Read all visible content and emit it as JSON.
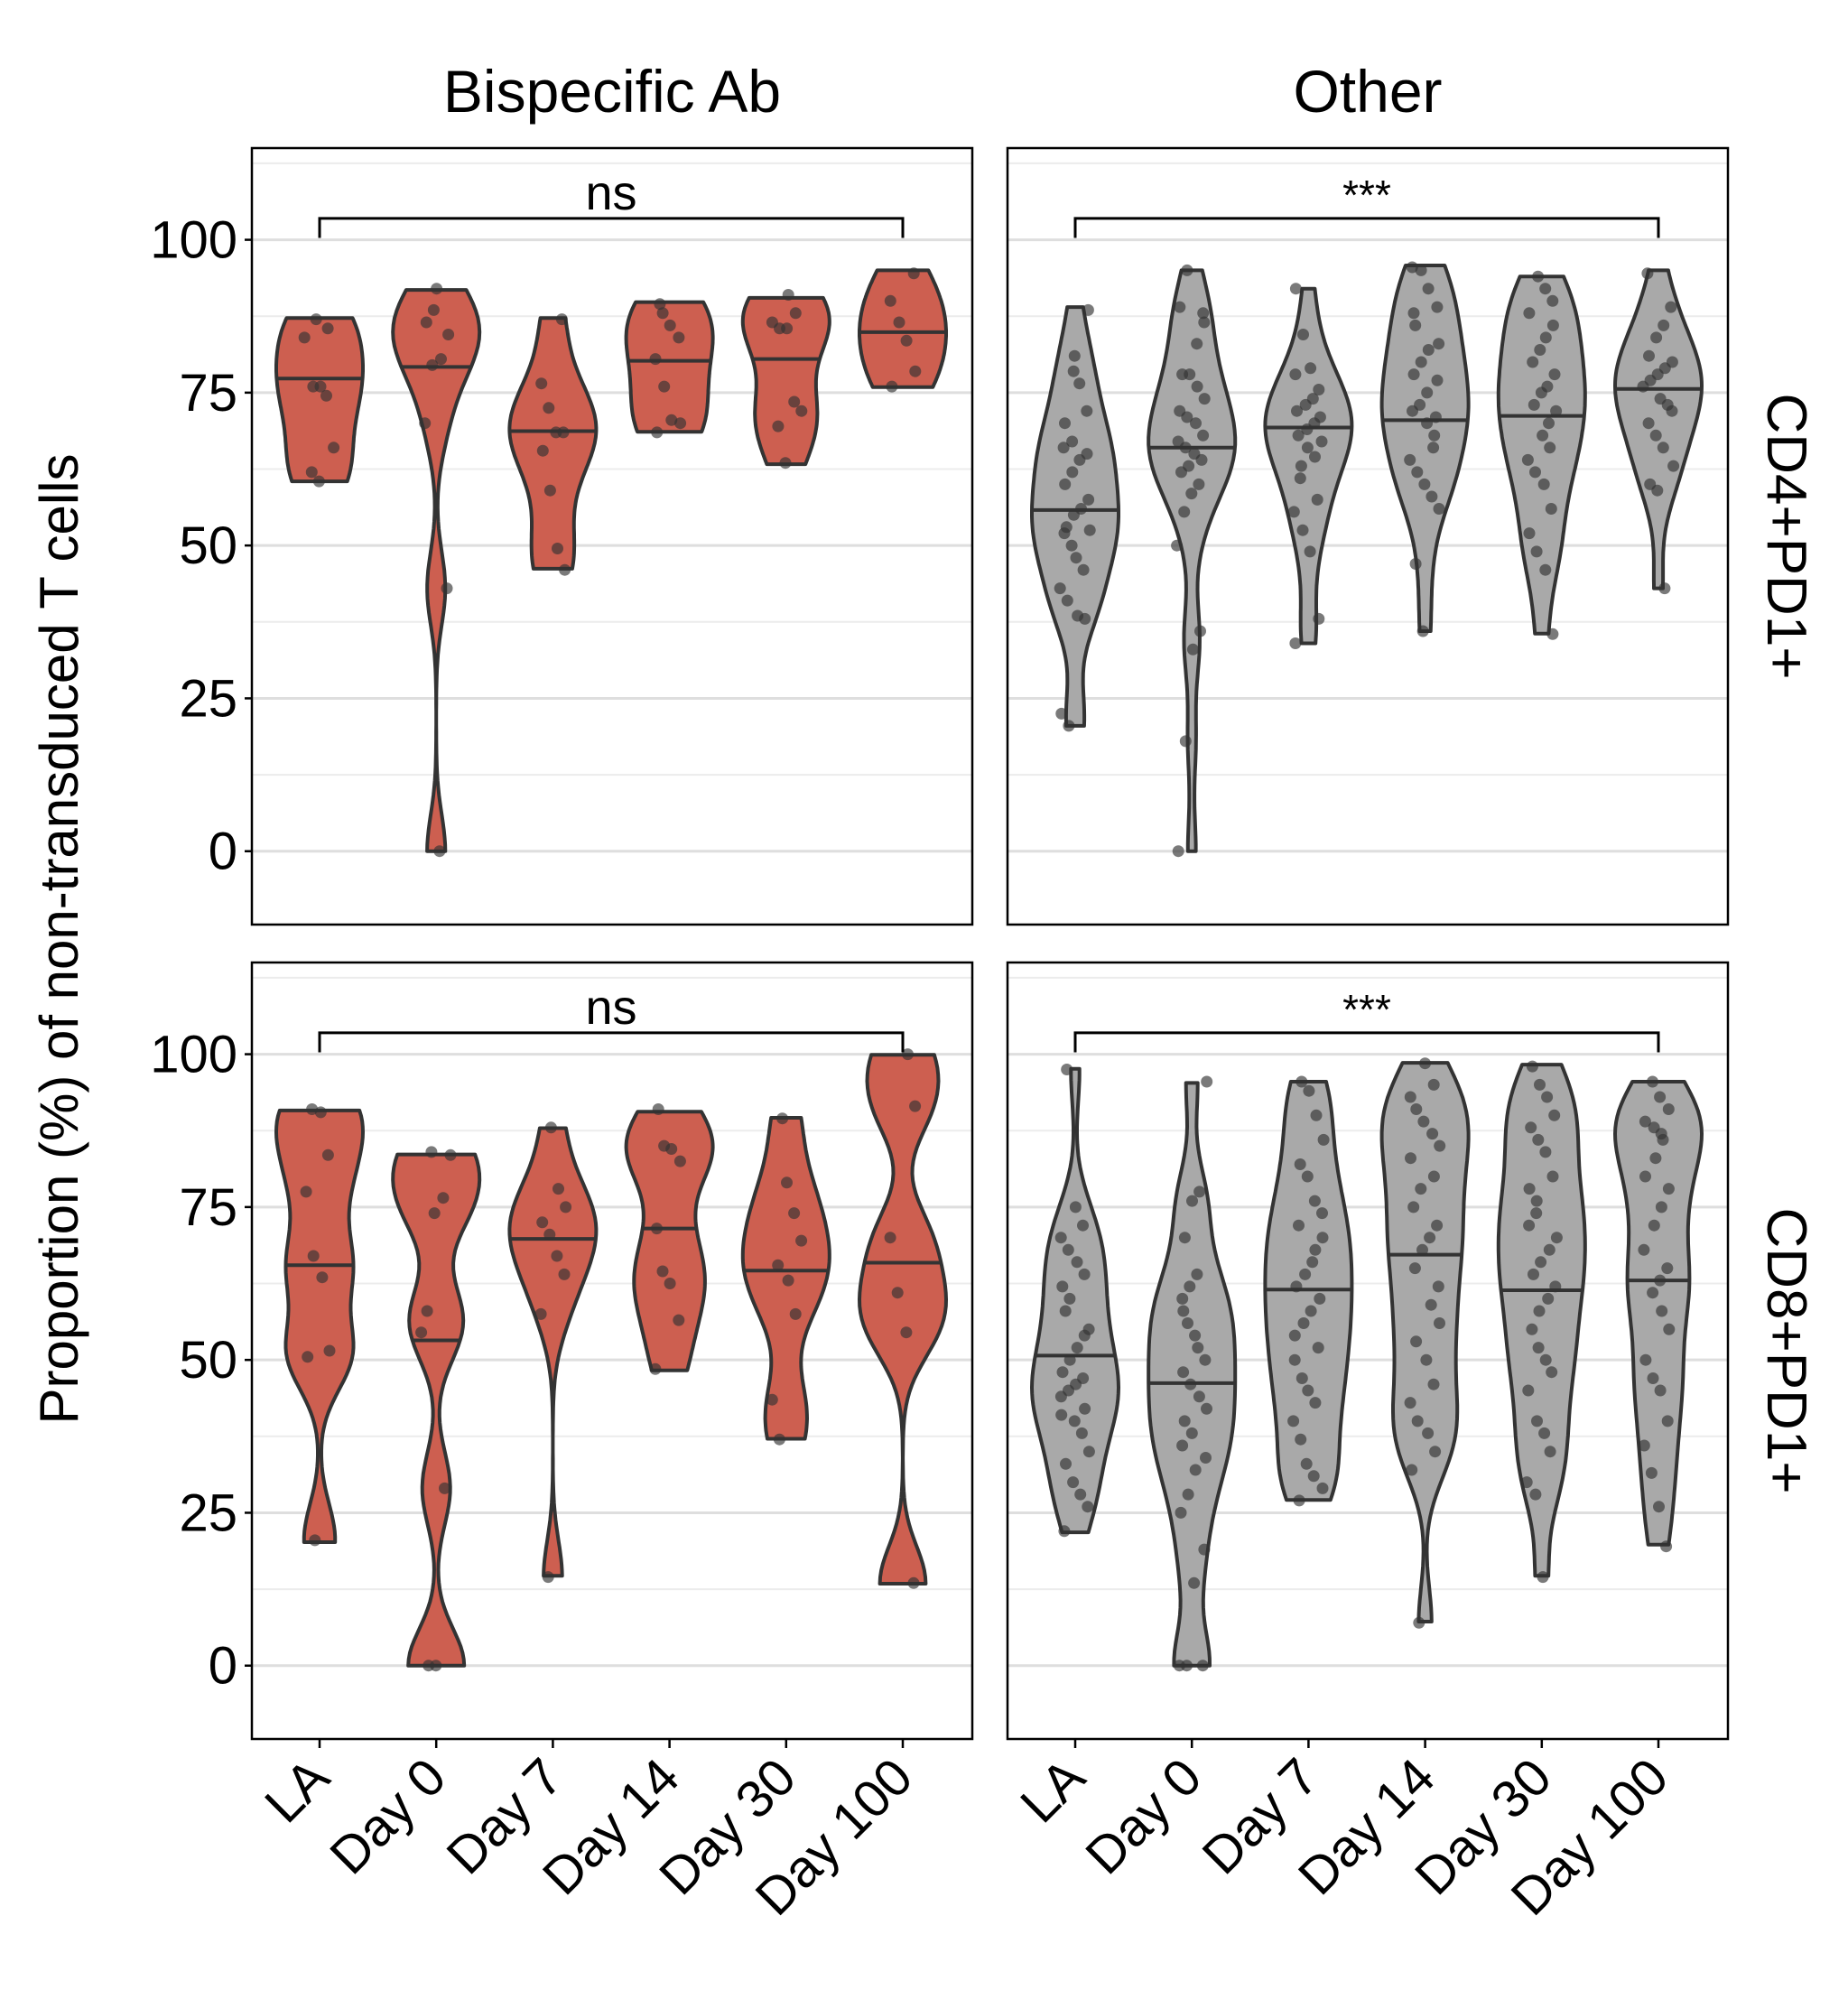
{
  "chart_data": {
    "type": "violin",
    "ylabel": "Proportion (%) of non-transduced T cells",
    "xlabel": "",
    "categories": [
      "LA",
      "Day 0",
      "Day 7",
      "Day 14",
      "Day 30",
      "Day 100"
    ],
    "ylim": [
      -12,
      115
    ],
    "yticks": [
      "0",
      "25",
      "50",
      "75",
      "100"
    ],
    "grid": true,
    "legend": "none",
    "columns": [
      "Bispecific Ab",
      "Other"
    ],
    "rows": [
      "CD4+PD1+",
      "CD8+PD1+"
    ],
    "colors": {
      "Bispecific Ab": "#cd5f50",
      "Other": "#a9a9a9",
      "outline": "#333333",
      "points": "#333333"
    },
    "panels": [
      {
        "column": "Bispecific Ab",
        "row": "CD4+PD1+",
        "significance": "ns",
        "groups": [
          {
            "category": "LA",
            "min": 60.5,
            "max": 87.2,
            "median": 77.3,
            "points": [
              60.5,
              62,
              66,
              74.5,
              76,
              76,
              84,
              85.5,
              87
            ]
          },
          {
            "category": "Day 0",
            "min": 0,
            "max": 91.8,
            "median": 79.2,
            "points": [
              0,
              43,
              70,
              79.5,
              80.5,
              84.5,
              86.5,
              88.5,
              92
            ]
          },
          {
            "category": "Day 7",
            "min": 46.2,
            "max": 87.2,
            "median": 68.7,
            "points": [
              46,
              49.5,
              59,
              65.5,
              68.5,
              68.5,
              72.5,
              76.5,
              87
            ]
          },
          {
            "category": "Day 14",
            "min": 68.6,
            "max": 89.8,
            "median": 80.2,
            "points": [
              68.5,
              70,
              70.5,
              76,
              80.5,
              84,
              86,
              88,
              89.5
            ]
          },
          {
            "category": "Day 30",
            "min": 63.3,
            "max": 90.5,
            "median": 80.5,
            "points": [
              63.5,
              69.5,
              72,
              73.5,
              85.5,
              85.5,
              86.5,
              88,
              91
            ]
          },
          {
            "category": "Day 100",
            "min": 75.9,
            "max": 95,
            "median": 84.9,
            "points": [
              76,
              78.5,
              83.5,
              86.5,
              90,
              94.5
            ]
          }
        ]
      },
      {
        "column": "Other",
        "row": "CD4+PD1+",
        "significance": "***",
        "groups": [
          {
            "category": "LA",
            "min": 20.5,
            "max": 89,
            "median": 55.8,
            "points": [
              20.5,
              22.5,
              38,
              38.5,
              41,
              43,
              46,
              48,
              50,
              52,
              52.5,
              53,
              55,
              56,
              57.5,
              60,
              62,
              64,
              65,
              66,
              67,
              70,
              72,
              76.5,
              78.5,
              81,
              88.5
            ]
          },
          {
            "category": "Day 0",
            "min": 0,
            "max": 95,
            "median": 66,
            "points": [
              0,
              18,
              33,
              36,
              50,
              55.5,
              58.5,
              60,
              62,
              63,
              64,
              65,
              66,
              67,
              68,
              70,
              71,
              72,
              74,
              76,
              78,
              78,
              83,
              86.5,
              88,
              89,
              95
            ]
          },
          {
            "category": "Day 7",
            "min": 34,
            "max": 92,
            "median": 69.3,
            "points": [
              34,
              38,
              49,
              52.5,
              55.5,
              57.5,
              61,
              63,
              64.5,
              66,
              67,
              68,
              69,
              70,
              71,
              72,
              73,
              74,
              75.5,
              78,
              79,
              84.5,
              92
            ]
          },
          {
            "category": "Day 14",
            "min": 36,
            "max": 95.8,
            "median": 70.5,
            "points": [
              36,
              47,
              56,
              58,
              60,
              62,
              64,
              66,
              68,
              70,
              71,
              72,
              73,
              75,
              77,
              78,
              80,
              82,
              83,
              86,
              88,
              89,
              92,
              95,
              95.5
            ]
          },
          {
            "category": "Day 30",
            "min": 35.6,
            "max": 94,
            "median": 71.2,
            "points": [
              35.5,
              46,
              49,
              52,
              56,
              60,
              62,
              64,
              66,
              68,
              70,
              72,
              73,
              75,
              76,
              78,
              80,
              82,
              84,
              86,
              88,
              90,
              92,
              94
            ]
          },
          {
            "category": "Day 100",
            "min": 43,
            "max": 95,
            "median": 75.6,
            "points": [
              43,
              59,
              60,
              63,
              66,
              68,
              70,
              72,
              73,
              74,
              76,
              77,
              78,
              79,
              80,
              81,
              84,
              86,
              89,
              94.5
            ]
          }
        ]
      },
      {
        "column": "Bispecific Ab",
        "row": "CD8+PD1+",
        "significance": "ns",
        "groups": [
          {
            "category": "LA",
            "min": 20.2,
            "max": 90.8,
            "median": 65.5,
            "points": [
              20.5,
              50.5,
              51.5,
              63.5,
              67,
              77.5,
              83.5,
              90.5,
              91
            ]
          },
          {
            "category": "Day 0",
            "min": 0,
            "max": 83.6,
            "median": 53.2,
            "points": [
              0,
              0,
              29,
              54.5,
              58,
              74,
              76.5,
              83.5,
              84
            ]
          },
          {
            "category": "Day 7",
            "min": 14.7,
            "max": 87.9,
            "median": 69.8,
            "points": [
              14.5,
              57.5,
              64,
              67,
              70.5,
              72.5,
              75,
              78,
              88
            ]
          },
          {
            "category": "Day 14",
            "min": 48.3,
            "max": 90.6,
            "median": 71.5,
            "points": [
              48.5,
              56.5,
              62.5,
              64.5,
              71.5,
              82.5,
              84.5,
              85,
              91
            ]
          },
          {
            "category": "Day 30",
            "min": 37.1,
            "max": 89.6,
            "median": 64.6,
            "points": [
              37,
              43.5,
              57.5,
              63,
              65.5,
              69.5,
              74,
              79,
              89.5
            ]
          },
          {
            "category": "Day 100",
            "min": 13.4,
            "max": 99.9,
            "median": 65.9,
            "points": [
              13.5,
              54.5,
              61,
              70,
              91.5,
              100
            ]
          }
        ]
      },
      {
        "column": "Other",
        "row": "CD8+PD1+",
        "significance": "***",
        "groups": [
          {
            "category": "LA",
            "min": 21.8,
            "max": 97.6,
            "median": 50.7,
            "points": [
              22,
              26,
              28,
              30,
              33,
              35,
              38,
              40,
              41,
              42,
              44,
              45,
              46,
              47,
              48,
              50,
              52,
              54,
              55,
              58,
              60,
              62,
              64,
              66,
              68,
              70,
              72,
              75,
              97.5
            ]
          },
          {
            "category": "Day 0",
            "min": 0,
            "max": 95.3,
            "median": 46.2,
            "points": [
              0,
              0,
              0,
              13.5,
              19,
              25,
              28,
              32,
              34,
              36,
              38,
              40,
              42,
              44,
              46,
              48,
              50,
              52,
              54,
              56,
              58,
              60,
              62,
              64,
              70,
              76,
              77.5,
              95.5
            ]
          },
          {
            "category": "Day 7",
            "min": 27.1,
            "max": 95.5,
            "median": 61.5,
            "points": [
              27,
              29,
              31,
              33,
              37,
              40,
              43,
              45,
              47,
              50,
              52,
              54,
              56,
              58,
              60,
              62,
              64,
              66,
              68,
              70,
              72,
              74,
              76,
              80,
              82,
              86,
              90,
              94,
              95.5
            ]
          },
          {
            "category": "Day 14",
            "min": 7.2,
            "max": 98.6,
            "median": 67.2,
            "points": [
              7,
              32,
              35,
              38,
              40,
              43,
              46,
              50,
              53,
              56,
              59,
              62,
              65,
              68,
              70,
              72,
              75,
              78,
              80,
              83,
              85,
              87,
              89,
              91,
              93,
              95,
              98.5
            ]
          },
          {
            "category": "Day 30",
            "min": 14.7,
            "max": 98.3,
            "median": 61.4,
            "points": [
              14.5,
              28,
              30,
              35,
              38,
              40,
              45,
              48,
              50,
              52,
              55,
              58,
              60,
              62,
              64,
              66,
              68,
              70,
              72,
              74,
              76,
              78,
              80,
              84,
              86,
              88,
              90,
              93,
              95,
              98
            ]
          },
          {
            "category": "Day 100",
            "min": 19.8,
            "max": 95.5,
            "median": 63,
            "points": [
              19.5,
              26,
              31.5,
              36,
              40,
              45,
              47,
              50,
              55,
              58,
              61,
              63,
              65,
              68,
              72,
              75,
              78,
              80,
              83,
              86,
              87,
              88,
              89,
              91,
              93,
              95.5
            ]
          }
        ]
      }
    ]
  }
}
